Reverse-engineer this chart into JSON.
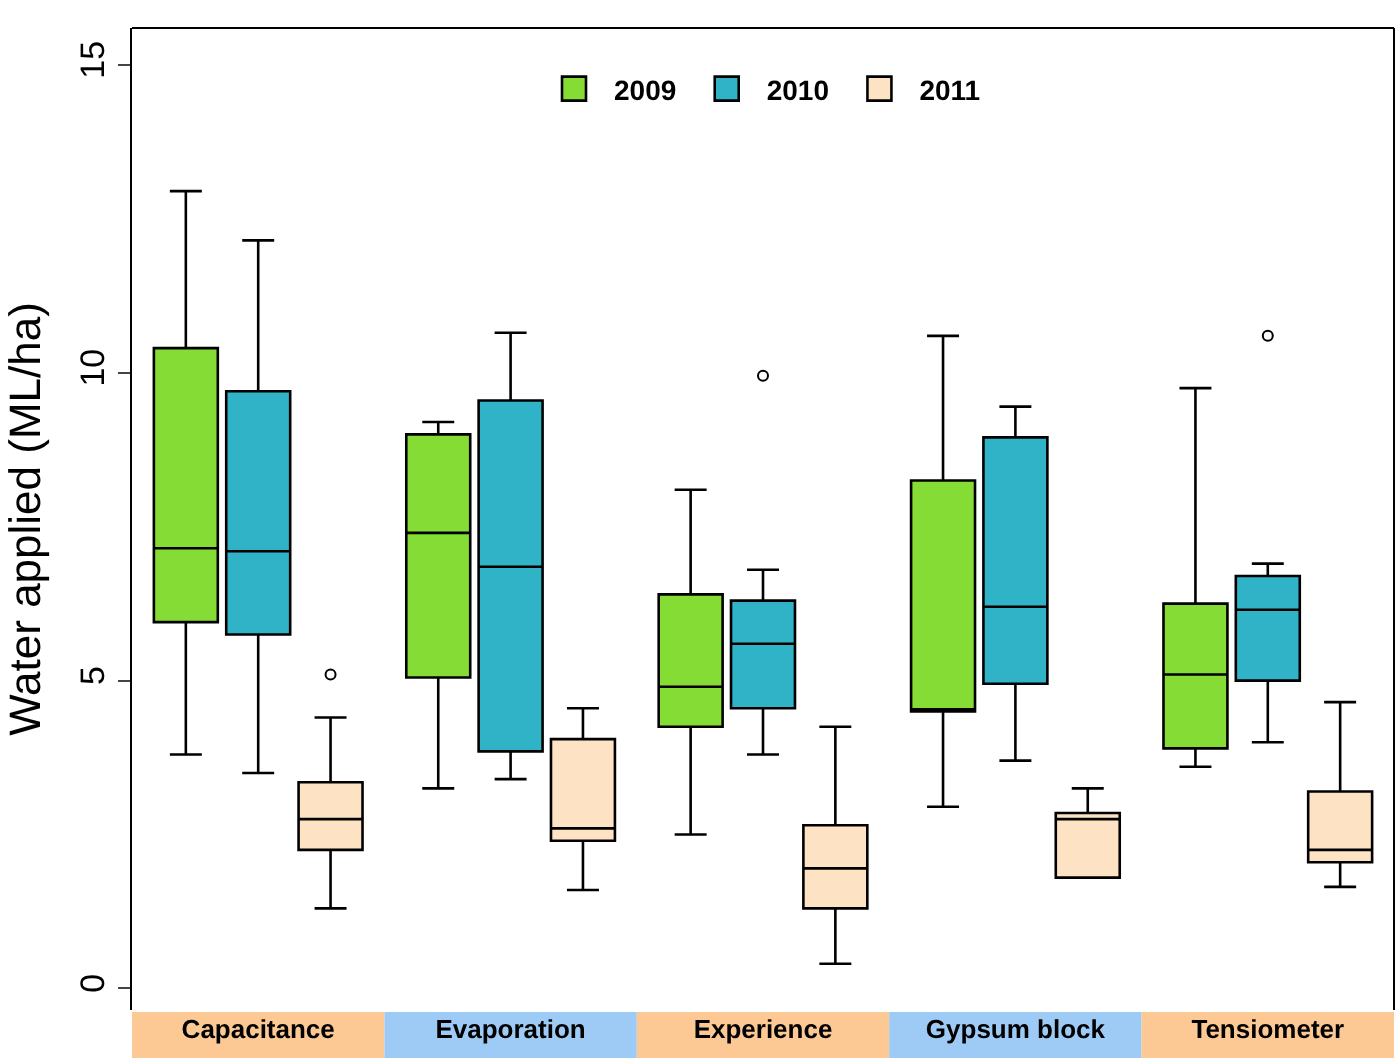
{
  "chart_data": {
    "type": "box",
    "ylabel": "Water applied (ML/ha)",
    "categories": [
      "Capacitance",
      "Evaporation",
      "Experience",
      "Gypsum block",
      "Tensiometer"
    ],
    "series": [
      {
        "name": "2009",
        "color": "#84dc34",
        "boxes": [
          {
            "low": 3.8,
            "q1": 5.95,
            "median": 7.15,
            "q3": 10.4,
            "high": 12.95
          },
          {
            "low": 3.25,
            "q1": 5.05,
            "median": 7.4,
            "q3": 9.0,
            "high": 9.2
          },
          {
            "low": 2.5,
            "q1": 4.25,
            "median": 4.9,
            "q3": 6.4,
            "high": 8.1
          },
          {
            "low": 2.95,
            "q1": 4.5,
            "median": 4.5,
            "q3": 8.25,
            "high": 10.6
          },
          {
            "low": 3.6,
            "q1": 3.9,
            "median": 5.1,
            "q3": 6.25,
            "high": 9.75
          }
        ]
      },
      {
        "name": "2010",
        "color": "#30b3c6",
        "boxes": [
          {
            "low": 3.5,
            "q1": 5.75,
            "median": 7.1,
            "q3": 9.7,
            "high": 12.15
          },
          {
            "low": 3.4,
            "q1": 3.85,
            "median": 6.85,
            "q3": 9.55,
            "high": 10.65
          },
          {
            "low": 3.8,
            "q1": 4.55,
            "median": 5.6,
            "q3": 6.3,
            "high": 6.8,
            "outliers": [
              9.95
            ]
          },
          {
            "low": 3.7,
            "q1": 4.95,
            "median": 6.2,
            "q3": 8.95,
            "high": 9.45
          },
          {
            "low": 4.0,
            "q1": 5.0,
            "median": 6.15,
            "q3": 6.7,
            "high": 6.9,
            "outliers": [
              10.6
            ]
          }
        ]
      },
      {
        "name": "2011",
        "color": "#fde3c3",
        "boxes": [
          {
            "low": 1.3,
            "q1": 2.25,
            "median": 2.75,
            "q3": 3.35,
            "high": 4.4,
            "outliers": [
              5.1
            ]
          },
          {
            "low": 1.6,
            "q1": 2.4,
            "median": 2.6,
            "q3": 4.05,
            "high": 4.55
          },
          {
            "low": 0.4,
            "q1": 1.3,
            "median": 1.95,
            "q3": 2.65,
            "high": 4.25
          },
          {
            "low": 1.8,
            "q1": 1.8,
            "median": 2.75,
            "q3": 2.85,
            "high": 3.25
          },
          {
            "low": 1.65,
            "q1": 2.05,
            "median": 2.25,
            "q3": 3.2,
            "high": 4.65
          }
        ]
      }
    ],
    "ylim": [
      -0.35,
      15.6
    ],
    "yticks": [
      0,
      5,
      10,
      15
    ],
    "legend": "top"
  }
}
